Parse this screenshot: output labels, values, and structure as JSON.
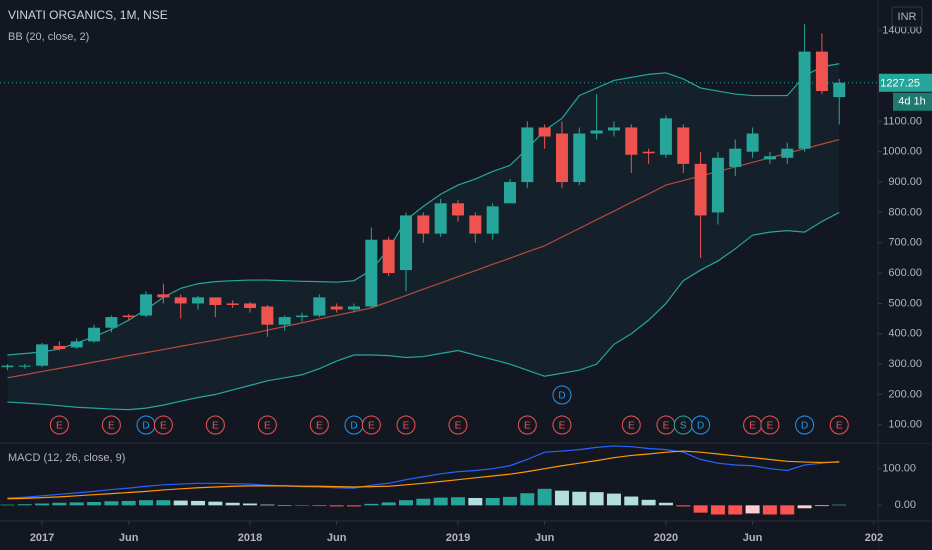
{
  "chart_data": [
    {
      "type": "candlestick",
      "title": "VINATI ORGANICS, 1M, NSE",
      "indicator": "BB (20, close, 2)",
      "currency": "INR",
      "x": [
        "2016-11",
        "2016-12",
        "2017-01",
        "2017-02",
        "2017-03",
        "2017-04",
        "2017-05",
        "2017-06",
        "2017-07",
        "2017-08",
        "2017-09",
        "2017-10",
        "2017-11",
        "2017-12",
        "2018-01",
        "2018-02",
        "2018-03",
        "2018-04",
        "2018-05",
        "2018-06",
        "2018-07",
        "2018-08",
        "2018-09",
        "2018-10",
        "2018-11",
        "2018-12",
        "2019-01",
        "2019-02",
        "2019-03",
        "2019-04",
        "2019-05",
        "2019-06",
        "2019-07",
        "2019-08",
        "2019-09",
        "2019-10",
        "2019-11",
        "2019-12",
        "2020-01",
        "2020-02",
        "2020-03",
        "2020-04",
        "2020-05",
        "2020-06",
        "2020-07",
        "2020-08",
        "2020-09",
        "2020-10",
        "2020-11"
      ],
      "open": [
        290,
        295,
        295,
        360,
        355,
        375,
        420,
        460,
        460,
        530,
        520,
        500,
        520,
        500,
        500,
        490,
        430,
        455,
        460,
        490,
        480,
        490,
        710,
        610,
        790,
        730,
        830,
        790,
        730,
        830,
        900,
        1080,
        1060,
        900,
        1060,
        1070,
        1080,
        1000,
        990,
        1080,
        960,
        800,
        950,
        1000,
        975,
        980,
        1010,
        1330,
        1180
      ],
      "high": [
        300,
        300,
        370,
        375,
        385,
        430,
        460,
        465,
        540,
        565,
        530,
        525,
        520,
        510,
        505,
        495,
        460,
        470,
        530,
        500,
        500,
        750,
        720,
        800,
        800,
        845,
        840,
        800,
        830,
        910,
        1100,
        1090,
        1100,
        1080,
        1190,
        1100,
        1090,
        1010,
        1120,
        1090,
        1000,
        1000,
        1040,
        1080,
        1000,
        1030,
        1420,
        1390,
        1240
      ],
      "low": [
        280,
        285,
        290,
        345,
        350,
        370,
        405,
        445,
        455,
        500,
        450,
        480,
        455,
        485,
        470,
        390,
        410,
        440,
        455,
        470,
        470,
        485,
        590,
        540,
        700,
        720,
        770,
        700,
        710,
        830,
        880,
        1010,
        880,
        890,
        1040,
        1050,
        930,
        960,
        980,
        930,
        650,
        760,
        920,
        980,
        960,
        960,
        1000,
        1190,
        1090
      ],
      "close": [
        295,
        295,
        365,
        350,
        375,
        420,
        455,
        455,
        530,
        520,
        500,
        520,
        495,
        495,
        485,
        430,
        455,
        460,
        520,
        480,
        490,
        710,
        600,
        790,
        730,
        830,
        790,
        730,
        820,
        900,
        1080,
        1050,
        900,
        1060,
        1070,
        1080,
        990,
        995,
        1110,
        960,
        790,
        980,
        1010,
        1060,
        985,
        1010,
        1330,
        1200,
        1227.25
      ],
      "up_color": "#26a69a",
      "down_color": "#ef5350",
      "series": [
        {
          "color": "#26a69a",
          "values": [
            330,
            335,
            340,
            350,
            370,
            390,
            415,
            445,
            480,
            520,
            550,
            565,
            572,
            575,
            577,
            577,
            575,
            573,
            572,
            570,
            575,
            610,
            680,
            775,
            820,
            860,
            890,
            910,
            935,
            955,
            1010,
            1070,
            1110,
            1185,
            1210,
            1235,
            1245,
            1255,
            1260,
            1240,
            1210,
            1200,
            1190,
            1185,
            1185,
            1185,
            1250,
            1280,
            1290
          ]
        },
        {
          "color": "#b7473f",
          "values": [
            255,
            265,
            276,
            286,
            296,
            307,
            317,
            328,
            338,
            348,
            359,
            369,
            379,
            390,
            400,
            412,
            424,
            436,
            449,
            461,
            473,
            485,
            506,
            526,
            547,
            567,
            588,
            608,
            629,
            649,
            670,
            690,
            719,
            747,
            776,
            804,
            833,
            861,
            890,
            905,
            920,
            935,
            950,
            965,
            980,
            995,
            1010,
            1025,
            1040
          ]
        },
        {
          "color": "#26a69a",
          "values": [
            175,
            172,
            168,
            163,
            158,
            155,
            152,
            150,
            155,
            165,
            178,
            190,
            200,
            215,
            230,
            245,
            255,
            265,
            285,
            310,
            330,
            330,
            328,
            322,
            325,
            335,
            345,
            330,
            315,
            300,
            280,
            260,
            270,
            280,
            300,
            365,
            400,
            445,
            500,
            575,
            610,
            640,
            680,
            725,
            735,
            740,
            735,
            770,
            800
          ]
        }
      ],
      "band_fill": "rgba(38,166,154,0.07)",
      "ylim": [
        50,
        1500
      ],
      "yticks": [
        {
          "value": 100,
          "label": "100.00"
        },
        {
          "value": 200,
          "label": "200.00"
        },
        {
          "value": 300,
          "label": "300.00"
        },
        {
          "value": 400,
          "label": "400.00"
        },
        {
          "value": 500,
          "label": "500.00"
        },
        {
          "value": 600,
          "label": "600.00"
        },
        {
          "value": 700,
          "label": "700.00"
        },
        {
          "value": 800,
          "label": "800.00"
        },
        {
          "value": 900,
          "label": "900.00"
        },
        {
          "value": 1000,
          "label": "1000.00"
        },
        {
          "value": 1100,
          "label": "1100.00"
        },
        {
          "value": 1400,
          "label": "1400.00"
        }
      ],
      "xticks": [
        {
          "value": "2017-01",
          "label": "2017"
        },
        {
          "value": "2017-06",
          "label": "Jun"
        },
        {
          "value": "2018-01",
          "label": "2018"
        },
        {
          "value": "2018-06",
          "label": "Jun"
        },
        {
          "value": "2019-01",
          "label": "2019"
        },
        {
          "value": "2019-06",
          "label": "Jun"
        },
        {
          "value": "2020-01",
          "label": "2020"
        },
        {
          "value": "2020-06",
          "label": "Jun"
        },
        {
          "value": "2021-01",
          "label": "202"
        }
      ],
      "price_tag": {
        "value": 1227.25,
        "label": "1227.25",
        "countdown": "4d 1h"
      },
      "events": [
        {
          "date": "2017-02",
          "label": "E"
        },
        {
          "date": "2017-05",
          "label": "E"
        },
        {
          "date": "2017-07",
          "label": "D"
        },
        {
          "date": "2017-08",
          "label": "E"
        },
        {
          "date": "2017-11",
          "label": "E"
        },
        {
          "date": "2018-02",
          "label": "E"
        },
        {
          "date": "2018-05",
          "label": "E"
        },
        {
          "date": "2018-07",
          "label": "D"
        },
        {
          "date": "2018-08",
          "label": "E"
        },
        {
          "date": "2018-10",
          "label": "E"
        },
        {
          "date": "2019-01",
          "label": "E"
        },
        {
          "date": "2019-05",
          "label": "E"
        },
        {
          "date": "2019-07",
          "label": "E"
        },
        {
          "date": "2019-07",
          "label": "D"
        },
        {
          "date": "2019-11",
          "label": "E"
        },
        {
          "date": "2020-01",
          "label": "E"
        },
        {
          "date": "2020-02",
          "label": "S"
        },
        {
          "date": "2020-03",
          "label": "D"
        },
        {
          "date": "2020-06",
          "label": "E"
        },
        {
          "date": "2020-07",
          "label": "E"
        },
        {
          "date": "2020-09",
          "label": "D"
        },
        {
          "date": "2020-11",
          "label": "E"
        }
      ],
      "event_colors": {
        "E": "#ef5350",
        "D": "#2196f3",
        "S": "#26a69a"
      }
    },
    {
      "type": "bar",
      "title": "MACD (12, 26, close, 9)",
      "values": [
        2,
        3,
        5,
        7,
        8,
        9,
        11,
        12,
        14,
        14,
        13,
        12,
        10,
        7,
        5,
        2,
        0,
        -1,
        -2,
        -3,
        -3,
        4,
        8,
        14,
        18,
        21,
        22,
        20,
        20,
        23,
        33,
        45,
        40,
        37,
        36,
        32,
        24,
        15,
        7,
        -3,
        -20,
        -25,
        -25,
        -22,
        -25,
        -25,
        -8,
        -2,
        2
      ],
      "histogram_colors": [
        "#26a69a",
        "#b2dfdb",
        "#ff5252",
        "#ffcdd2"
      ],
      "series": [
        {
          "color": "#2962ff",
          "values": [
            20,
            22,
            26,
            30,
            34,
            38,
            43,
            47,
            52,
            56,
            58,
            60,
            60,
            59,
            58,
            55,
            53,
            51,
            50,
            48,
            47,
            55,
            60,
            70,
            78,
            86,
            92,
            95,
            100,
            108,
            125,
            145,
            148,
            152,
            158,
            162,
            160,
            155,
            152,
            145,
            125,
            115,
            110,
            108,
            100,
            95,
            110,
            115,
            120
          ]
        },
        {
          "color": "#ff9800",
          "values": [
            18,
            19,
            21,
            23,
            26,
            29,
            32,
            35,
            38,
            42,
            45,
            48,
            50,
            52,
            53,
            53,
            53,
            52,
            52,
            51,
            50,
            51,
            52,
            56,
            60,
            65,
            70,
            75,
            80,
            85,
            92,
            100,
            108,
            115,
            122,
            130,
            136,
            140,
            145,
            148,
            145,
            140,
            135,
            130,
            125,
            120,
            118,
            117,
            118
          ]
        }
      ],
      "ylim": [
        -40,
        170
      ],
      "yticks": [
        {
          "value": 0,
          "label": "0.00"
        },
        {
          "value": 100,
          "label": "100.00"
        }
      ]
    }
  ]
}
